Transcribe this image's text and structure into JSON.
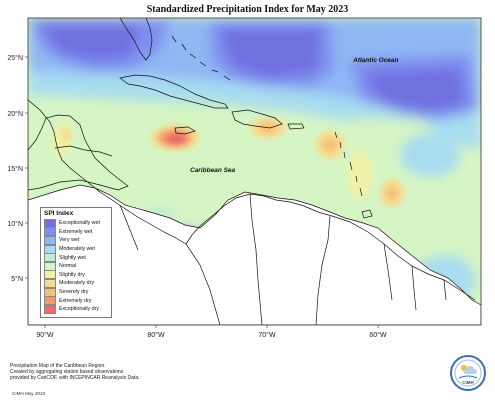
{
  "title": "Standardized Precipitation Index for May 2023",
  "map": {
    "lat_ticks": [
      "25°N",
      "20°N",
      "15°N",
      "10°N",
      "5°N"
    ],
    "lon_ticks": [
      "90°W",
      "80°W",
      "70°W",
      "60°W"
    ],
    "labels": {
      "atlantic": "Atlantic Ocean",
      "caribbean": "Caribbean Sea"
    }
  },
  "legend": {
    "title": "SPI Index",
    "items": [
      {
        "label": "Exceptionally wet",
        "color": "#6f6fdf"
      },
      {
        "label": "Extremely wet",
        "color": "#7f8ff0"
      },
      {
        "label": "Very wet",
        "color": "#8fb7f4"
      },
      {
        "label": "Moderately wet",
        "color": "#a7dcf0"
      },
      {
        "label": "Slightly wet",
        "color": "#c3ecd5"
      },
      {
        "label": "Normal",
        "color": "#d6f5c4"
      },
      {
        "label": "Slightly dry",
        "color": "#f0f2a8"
      },
      {
        "label": "Moderately dry",
        "color": "#f6dc8e"
      },
      {
        "label": "Severely dry",
        "color": "#f7c07a"
      },
      {
        "label": "Extremely dry",
        "color": "#f59a6e"
      },
      {
        "label": "Exceptionally dry",
        "color": "#ee6a66"
      }
    ]
  },
  "footer": {
    "line1": "Precipitation Map of the Caribbean Region.",
    "line2": "Created by aggregating station based observations",
    "line3": "provided by CariCOF, with INCEPINCAR Reanalysis Data.",
    "code": "CIMH May 2023"
  },
  "logo": {
    "text": "CIMH"
  }
}
